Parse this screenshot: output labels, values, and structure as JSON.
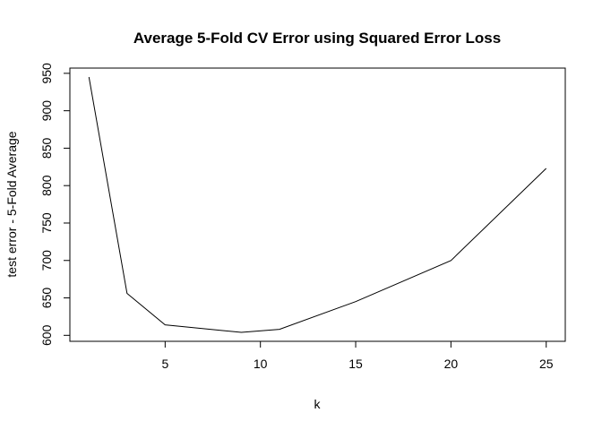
{
  "chart_data": {
    "type": "line",
    "title": "Average 5-Fold CV Error using Squared Error Loss",
    "xlabel": "k",
    "ylabel": "test error - 5-Fold Average",
    "x": [
      1,
      3,
      5,
      9,
      11,
      15,
      20,
      25
    ],
    "y": [
      945,
      656,
      614,
      604,
      608,
      645,
      700,
      823
    ],
    "xlim": [
      0,
      26
    ],
    "ylim": [
      592,
      957
    ],
    "x_ticks": [
      5,
      10,
      15,
      20,
      25
    ],
    "y_ticks": [
      600,
      650,
      700,
      750,
      800,
      850,
      900,
      950
    ],
    "x_tick_labels": [
      "5",
      "10",
      "15",
      "20",
      "25"
    ],
    "y_tick_labels": [
      "600",
      "650",
      "700",
      "750",
      "800",
      "850",
      "900",
      "950"
    ],
    "grid": false,
    "line_color": "#000000"
  }
}
